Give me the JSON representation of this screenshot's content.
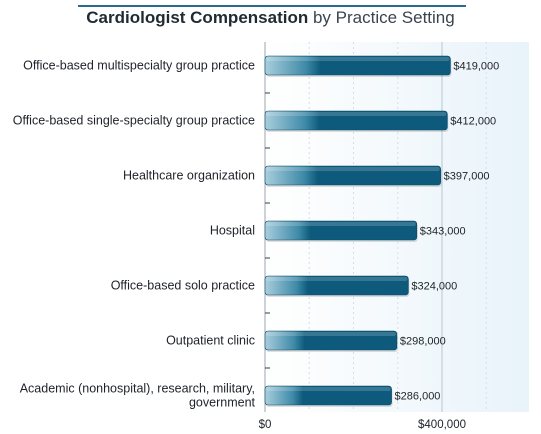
{
  "chart_data": {
    "type": "bar",
    "orientation": "horizontal",
    "title_bold": "Cardiologist Compensation",
    "title_rest": "by Practice Setting",
    "categories": [
      "Office-based multispecialty group practice",
      "Office-based single-specialty group practice",
      "Healthcare organization",
      "Hospital",
      "Office-based solo practice",
      "Outpatient clinic",
      "Academic (nonhospital), research, military, government"
    ],
    "category_lines": [
      [
        "Office-based multispecialty group practice"
      ],
      [
        "Office-based single-specialty group practice"
      ],
      [
        "Healthcare organization"
      ],
      [
        "Hospital"
      ],
      [
        "Office-based solo practice"
      ],
      [
        "Outpatient clinic"
      ],
      [
        "Academic (nonhospital), research, military,",
        "government"
      ]
    ],
    "values": [
      419000,
      412000,
      397000,
      343000,
      324000,
      298000,
      286000
    ],
    "value_labels": [
      "$419,000",
      "$412,000",
      "$397,000",
      "$343,000",
      "$324,000",
      "$298,000",
      "$286,000"
    ],
    "xaxis": {
      "ticks": [
        0,
        400000
      ],
      "tick_labels": [
        "$0",
        "$400,000"
      ],
      "xlim": [
        0,
        600000
      ]
    },
    "grid": true,
    "colors": {
      "bar_dark": "#0d5a7c",
      "bar_light": "#a9cedd",
      "plot_bg": "#eef6fb",
      "grid": "#c8d4dc"
    }
  }
}
